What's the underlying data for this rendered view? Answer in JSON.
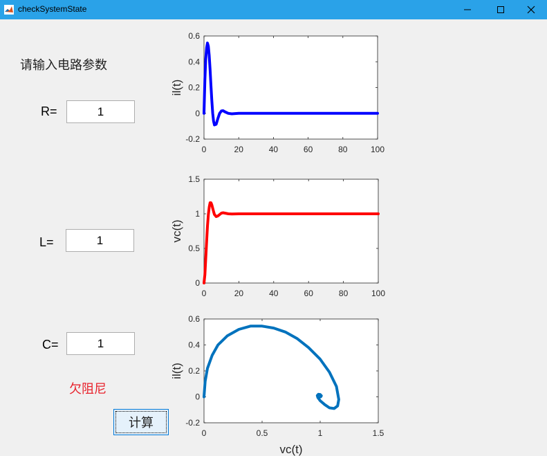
{
  "window": {
    "title": "checkSystemState"
  },
  "form": {
    "prompt": "请输入电路参数",
    "r_label": "R=",
    "r_value": "1",
    "l_label": "L=",
    "l_value": "1",
    "c_label": "C=",
    "c_value": "1",
    "status": "欠阻尼",
    "compute_label": "计算"
  },
  "colors": {
    "titlebar": "#2aa2e8",
    "status": "#e8202a",
    "il_line": "#0000ff",
    "vc_line": "#ff0000",
    "phase_line": "#0072bd"
  },
  "chart_data": [
    {
      "type": "line",
      "ylabel": "il(t)",
      "xlabel": "",
      "xlim": [
        0,
        100
      ],
      "ylim": [
        -0.2,
        0.6
      ],
      "xticks": [
        "0",
        "20",
        "40",
        "60",
        "80",
        "100"
      ],
      "yticks": [
        "-0.2",
        "0",
        "0.2",
        "0.4",
        "0.6"
      ],
      "series": [
        {
          "x": [
            0,
            0.5,
            1,
            1.5,
            2,
            2.5,
            3,
            3.5,
            4,
            4.5,
            5,
            5.5,
            6,
            7,
            8,
            9,
            10,
            11,
            12,
            14,
            16,
            20,
            30,
            50,
            100
          ],
          "y": [
            0,
            0.26,
            0.42,
            0.51,
            0.545,
            0.52,
            0.45,
            0.34,
            0.22,
            0.1,
            0.0,
            -0.06,
            -0.09,
            -0.085,
            -0.04,
            0.0,
            0.018,
            0.02,
            0.012,
            0.0,
            -0.004,
            0,
            0,
            0,
            0
          ]
        }
      ]
    },
    {
      "type": "line",
      "ylabel": "vc(t)",
      "xlabel": "",
      "xlim": [
        0,
        100
      ],
      "ylim": [
        0,
        1.5
      ],
      "xticks": [
        "0",
        "20",
        "40",
        "60",
        "80",
        "100"
      ],
      "yticks": [
        "0",
        "0.5",
        "1",
        "1.5"
      ],
      "series": [
        {
          "x": [
            0,
            0.5,
            1,
            1.5,
            2,
            2.5,
            3,
            3.5,
            4,
            4.5,
            5,
            5.5,
            6,
            7,
            8,
            9,
            10,
            11,
            12,
            14,
            16,
            20,
            30,
            50,
            100
          ],
          "y": [
            0,
            0.12,
            0.35,
            0.6,
            0.82,
            0.99,
            1.1,
            1.16,
            1.16,
            1.13,
            1.08,
            1.03,
            0.99,
            0.96,
            0.97,
            0.99,
            1.01,
            1.015,
            1.01,
            1.0,
            0.998,
            1,
            1,
            1,
            1
          ]
        }
      ]
    },
    {
      "type": "line",
      "ylabel": "il(t)",
      "xlabel": "vc(t)",
      "xlim": [
        0,
        1.5
      ],
      "ylim": [
        -0.2,
        0.6
      ],
      "xticks": [
        "0",
        "0.5",
        "1",
        "1.5"
      ],
      "yticks": [
        "-0.2",
        "0",
        "0.2",
        "0.4",
        "0.6"
      ],
      "series": [
        {
          "x": [
            0,
            0.01,
            0.03,
            0.07,
            0.12,
            0.2,
            0.3,
            0.4,
            0.5,
            0.6,
            0.7,
            0.8,
            0.9,
            1.0,
            1.08,
            1.14,
            1.16,
            1.15,
            1.12,
            1.08,
            1.04,
            1.0,
            0.98,
            0.975,
            0.985,
            1.0,
            1.01,
            1.005,
            1.0
          ],
          "y": [
            0,
            0.12,
            0.22,
            0.32,
            0.4,
            0.47,
            0.52,
            0.545,
            0.545,
            0.53,
            0.5,
            0.45,
            0.38,
            0.29,
            0.19,
            0.08,
            -0.02,
            -0.07,
            -0.09,
            -0.085,
            -0.06,
            -0.03,
            -0.005,
            0.01,
            0.02,
            0.018,
            0.008,
            0.0,
            0.0
          ]
        }
      ]
    }
  ]
}
